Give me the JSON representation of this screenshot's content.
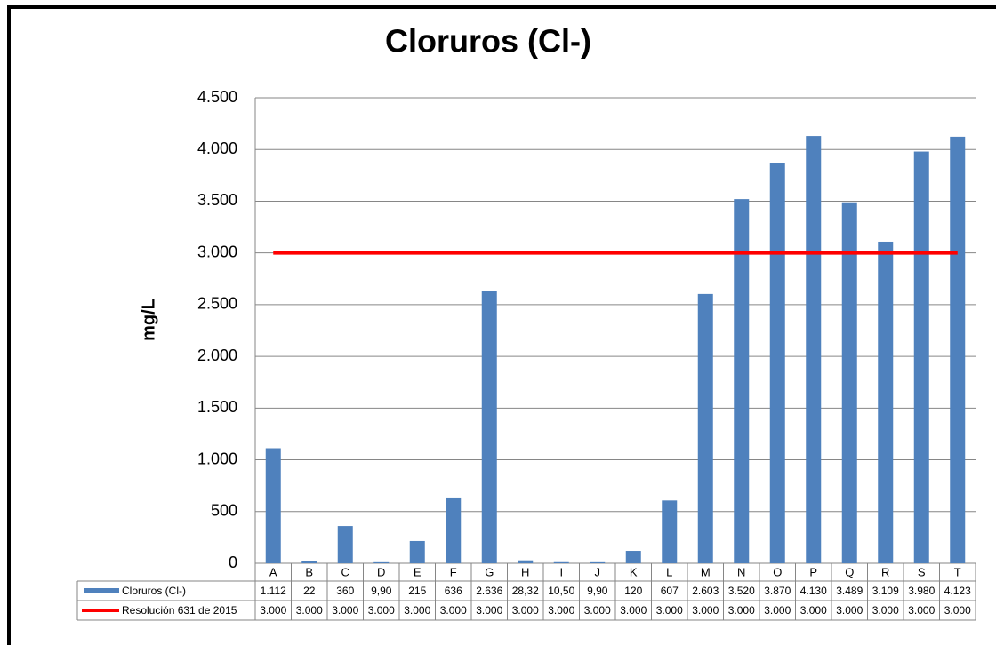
{
  "chart_data": {
    "type": "bar",
    "title": "Cloruros (Cl-)",
    "y_label": "mg/L",
    "categories": [
      "A",
      "B",
      "C",
      "D",
      "E",
      "F",
      "G",
      "H",
      "I",
      "J",
      "K",
      "L",
      "M",
      "N",
      "O",
      "P",
      "Q",
      "R",
      "S",
      "T"
    ],
    "series": [
      {
        "name": "Cloruros (Cl-)",
        "type": "bar",
        "color": "#4f81bd",
        "values": [
          1112,
          22,
          360,
          9.9,
          215,
          636,
          2636,
          28.32,
          10.5,
          9.9,
          120,
          607,
          2603,
          3520,
          3870,
          4130,
          3489,
          3109,
          3980,
          4123
        ],
        "value_labels": [
          "1.112",
          "22",
          "360",
          "9,90",
          "215",
          "636",
          "2.636",
          "28,32",
          "10,50",
          "9,90",
          "120",
          "607",
          "2.603",
          "3.520",
          "3.870",
          "4.130",
          "3.489",
          "3.109",
          "3.980",
          "4.123"
        ]
      },
      {
        "name": "Resolución 631 de 2015",
        "type": "line",
        "color": "#ff0000",
        "values": [
          3000,
          3000,
          3000,
          3000,
          3000,
          3000,
          3000,
          3000,
          3000,
          3000,
          3000,
          3000,
          3000,
          3000,
          3000,
          3000,
          3000,
          3000,
          3000,
          3000
        ],
        "value_labels": [
          "3.000",
          "3.000",
          "3.000",
          "3.000",
          "3.000",
          "3.000",
          "3.000",
          "3.000",
          "3.000",
          "3.000",
          "3.000",
          "3.000",
          "3.000",
          "3.000",
          "3.000",
          "3.000",
          "3.000",
          "3.000",
          "3.000",
          "3.000"
        ]
      }
    ],
    "ylim": [
      0,
      4500
    ],
    "yticks": [
      0,
      500,
      {
        "value": 1000,
        "label": "1.000"
      },
      {
        "value": 1500,
        "label": "1.500"
      },
      {
        "value": 2000,
        "label": "2.000"
      },
      {
        "value": 2500,
        "label": "2.500"
      },
      {
        "value": 3000,
        "label": "3.000"
      },
      {
        "value": 3500,
        "label": "3.500"
      },
      {
        "value": 4000,
        "label": "4.000"
      },
      {
        "value": 4500,
        "label": "4.500"
      }
    ],
    "grid": true,
    "data_table": true
  }
}
